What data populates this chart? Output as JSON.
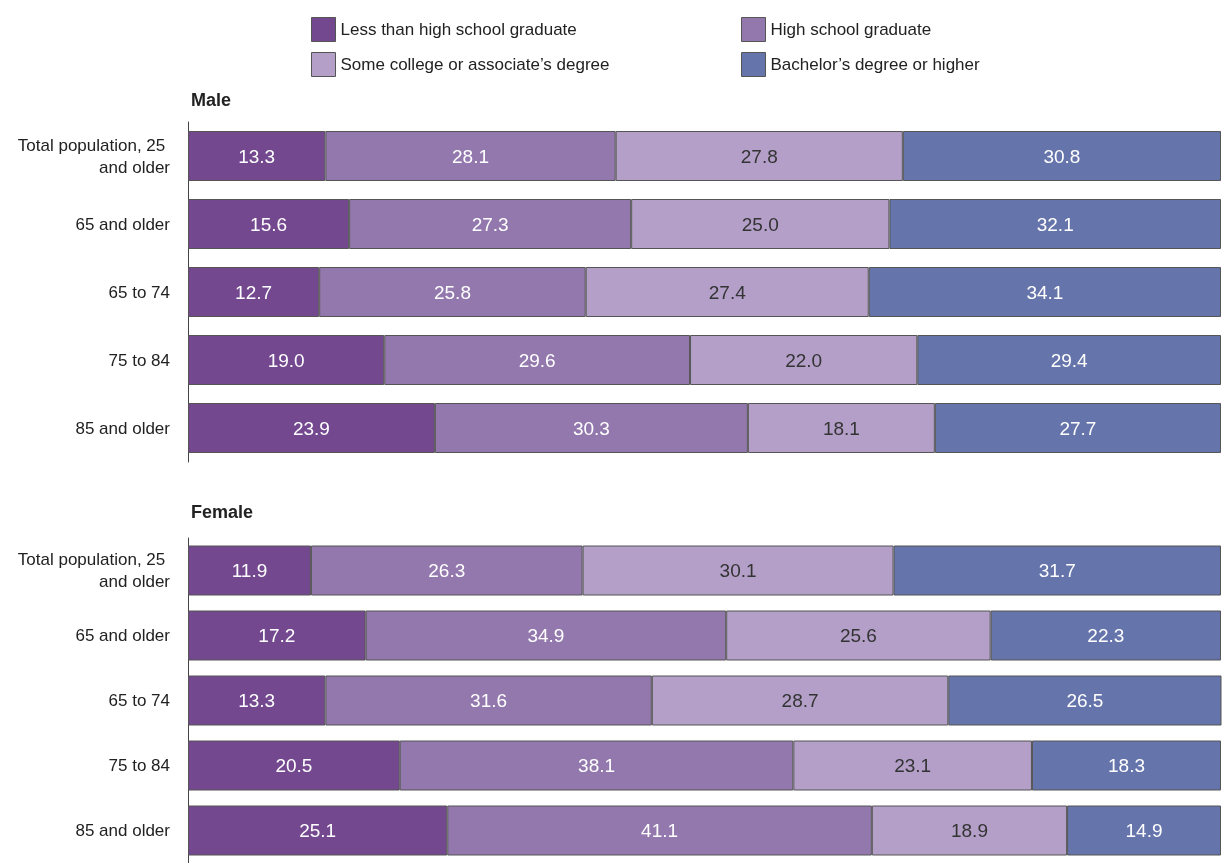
{
  "chart_data": [
    {
      "type": "bar",
      "title": "Male",
      "orientation": "horizontal",
      "stacked": true,
      "data_labels": true,
      "legend": "top",
      "tick_labels": "y",
      "grid": false,
      "xlim": [
        0,
        100
      ],
      "categories": [
        "Total population, 25 and older",
        "65 and older",
        "65 to 74",
        "75 to 84",
        "85 and older"
      ],
      "series": [
        {
          "name": "Less than high school graduate",
          "color": "#74488f",
          "values": [
            13.3,
            15.6,
            12.7,
            19.0,
            23.9
          ],
          "value_labels": [
            "13.3",
            "15.6",
            "12.7",
            "19.0",
            "23.9"
          ]
        },
        {
          "name": "High school graduate",
          "color": "#9378ad",
          "values": [
            28.1,
            27.3,
            25.8,
            29.6,
            30.3
          ]
        },
        {
          "name": "Some college or associate’s degree",
          "color": "#b39fc8",
          "values": [
            27.8,
            25.0,
            27.4,
            22.0,
            18.1
          ],
          "value_labels": [
            "27.8",
            "25.0",
            "27.4",
            "22.0",
            "18.1"
          ]
        },
        {
          "name": "Bachelor’s degree or higher",
          "color": "#6574ab",
          "values": [
            30.8,
            32.1,
            34.1,
            29.4,
            27.7
          ]
        }
      ]
    },
    {
      "type": "bar",
      "title": "Female",
      "orientation": "horizontal",
      "stacked": true,
      "data_labels": true,
      "tick_labels": "y",
      "grid": false,
      "xlim": [
        0,
        100
      ],
      "categories": [
        "Total population, 25 and older",
        "65 and older",
        "65 to 74",
        "75 to 84",
        "85 and older"
      ],
      "series": [
        {
          "color": "#74488f",
          "values": [
            11.9,
            17.2,
            13.3,
            20.5,
            25.1
          ]
        },
        {
          "color": "#9378ad",
          "values": [
            26.3,
            34.9,
            31.6,
            38.1,
            41.1
          ]
        },
        {
          "color": "#b39fc8",
          "values": [
            30.1,
            25.6,
            28.7,
            23.1,
            18.9
          ]
        },
        {
          "color": "#6574ab",
          "values": [
            31.7,
            22.3,
            26.5,
            18.3,
            14.9
          ]
        }
      ]
    }
  ]
}
